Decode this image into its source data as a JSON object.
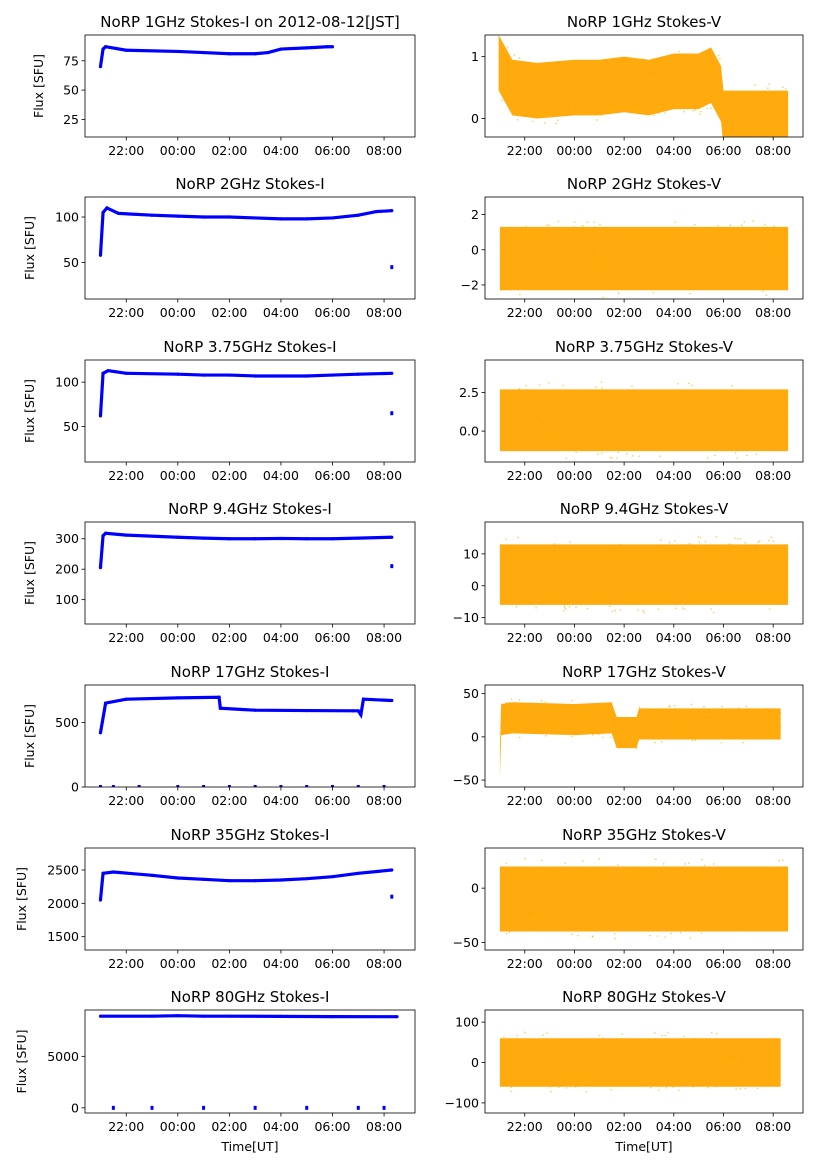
{
  "chart_data": [
    {
      "type": "scatter",
      "title": "NoRP 1GHz Stokes-I on 2012-08-12[JST]",
      "ylabel": "Flux [SFU]",
      "xlabel": "",
      "color": "#0000ff",
      "ylim": [
        10,
        97
      ],
      "yticks": [
        {
          "value": 25,
          "label": "25"
        },
        {
          "value": 50,
          "label": "50"
        },
        {
          "value": 75,
          "label": "75"
        }
      ],
      "xlim": [
        -3.6,
        9.2
      ],
      "x_end": 6.0,
      "series": [
        {
          "values": [
            [
              -3.0,
              70
            ],
            [
              -2.9,
              85
            ],
            [
              -2.8,
              87
            ],
            [
              -2.0,
              84
            ],
            [
              0,
              83
            ],
            [
              1,
              82
            ],
            [
              2,
              81
            ],
            [
              3,
              81
            ],
            [
              3.5,
              82
            ],
            [
              4,
              85
            ],
            [
              5,
              86
            ],
            [
              5.8,
              87
            ],
            [
              6.0,
              87
            ]
          ]
        }
      ],
      "outliers": []
    },
    {
      "type": "scatter",
      "title": "NoRP 1GHz Stokes-V",
      "ylabel": "",
      "xlabel": "",
      "color": "#ffa500",
      "ylim": [
        -0.3,
        1.35
      ],
      "yticks": [
        {
          "value": 0,
          "label": "0"
        },
        {
          "value": 1,
          "label": "1"
        }
      ],
      "xlim": [
        -3.6,
        9.2
      ],
      "series": [
        {
          "values": [
            [
              -3.05,
              0.9
            ],
            [
              -2.5,
              0.5
            ],
            [
              -1.5,
              0.45
            ],
            [
              0,
              0.5
            ],
            [
              1,
              0.5
            ],
            [
              2,
              0.55
            ],
            [
              3,
              0.5
            ],
            [
              4,
              0.6
            ],
            [
              5,
              0.6
            ],
            [
              5.5,
              0.7
            ],
            [
              5.9,
              0.4
            ],
            [
              6.0,
              0
            ],
            [
              8.6,
              0
            ]
          ],
          "spread": 0.45
        }
      ],
      "outliers": []
    },
    {
      "type": "scatter",
      "title": "NoRP 2GHz Stokes-I",
      "ylabel": "Flux [SFU]",
      "xlabel": "",
      "color": "#0000ff",
      "ylim": [
        10,
        122
      ],
      "yticks": [
        {
          "value": 50,
          "label": "50"
        },
        {
          "value": 100,
          "label": "100"
        }
      ],
      "xlim": [
        -3.6,
        9.2
      ],
      "series": [
        {
          "values": [
            [
              -3.0,
              58
            ],
            [
              -2.9,
              105
            ],
            [
              -2.75,
              110
            ],
            [
              -2.3,
              104
            ],
            [
              -1,
              102
            ],
            [
              0,
              101
            ],
            [
              1,
              100
            ],
            [
              2,
              100
            ],
            [
              3,
              99
            ],
            [
              4,
              98
            ],
            [
              5,
              98
            ],
            [
              6,
              99
            ],
            [
              7,
              102
            ],
            [
              7.7,
              106
            ],
            [
              8.3,
              107
            ]
          ]
        }
      ],
      "outliers": [
        [
          8.3,
          45
        ]
      ]
    },
    {
      "type": "scatter",
      "title": "NoRP 2GHz Stokes-V",
      "ylabel": "",
      "xlabel": "",
      "color": "#ffa500",
      "ylim": [
        -2.8,
        3.0
      ],
      "yticks": [
        {
          "value": -2,
          "label": "−2"
        },
        {
          "value": 0,
          "label": "0"
        },
        {
          "value": 2,
          "label": "2"
        }
      ],
      "xlim": [
        -3.6,
        9.2
      ],
      "series": [
        {
          "values": [
            [
              -3.0,
              -0.5
            ],
            [
              8.6,
              -0.5
            ]
          ],
          "spread": 1.8
        }
      ],
      "outliers": []
    },
    {
      "type": "scatter",
      "title": "NoRP 3.75GHz Stokes-I",
      "ylabel": "Flux [SFU]",
      "xlabel": "",
      "color": "#0000ff",
      "ylim": [
        10,
        125
      ],
      "yticks": [
        {
          "value": 50,
          "label": "50"
        },
        {
          "value": 100,
          "label": "100"
        }
      ],
      "xlim": [
        -3.6,
        9.2
      ],
      "series": [
        {
          "values": [
            [
              -3.0,
              62
            ],
            [
              -2.9,
              110
            ],
            [
              -2.7,
              113
            ],
            [
              -2,
              110
            ],
            [
              0,
              109
            ],
            [
              1,
              108
            ],
            [
              2,
              108
            ],
            [
              3,
              107
            ],
            [
              4,
              107
            ],
            [
              5,
              107
            ],
            [
              6,
              108
            ],
            [
              7,
              109
            ],
            [
              8.3,
              110
            ]
          ]
        }
      ],
      "outliers": [
        [
          8.3,
          65
        ]
      ]
    },
    {
      "type": "scatter",
      "title": "NoRP 3.75GHz Stokes-V",
      "ylabel": "",
      "xlabel": "",
      "color": "#ffa500",
      "ylim": [
        -2.0,
        4.6
      ],
      "yticks": [
        {
          "value": 0,
          "label": "0.0"
        },
        {
          "value": 2.5,
          "label": "2.5"
        }
      ],
      "xlim": [
        -3.6,
        9.2
      ],
      "series": [
        {
          "values": [
            [
              -3.0,
              0.7
            ],
            [
              8.6,
              0.7
            ]
          ],
          "spread": 2.0
        }
      ],
      "outliers": []
    },
    {
      "type": "scatter",
      "title": "NoRP 9.4GHz Stokes-I",
      "ylabel": "Flux [SFU]",
      "xlabel": "",
      "color": "#0000ff",
      "ylim": [
        20,
        355
      ],
      "yticks": [
        {
          "value": 100,
          "label": "100"
        },
        {
          "value": 200,
          "label": "200"
        },
        {
          "value": 300,
          "label": "300"
        }
      ],
      "xlim": [
        -3.6,
        9.2
      ],
      "series": [
        {
          "values": [
            [
              -3.0,
              205
            ],
            [
              -2.9,
              310
            ],
            [
              -2.8,
              318
            ],
            [
              -2,
              312
            ],
            [
              0,
              305
            ],
            [
              1,
              302
            ],
            [
              2,
              300
            ],
            [
              3,
              300
            ],
            [
              4,
              301
            ],
            [
              5,
              300
            ],
            [
              6,
              300
            ],
            [
              7,
              302
            ],
            [
              8.3,
              305
            ]
          ]
        }
      ],
      "outliers": [
        [
          8.3,
          210
        ]
      ]
    },
    {
      "type": "scatter",
      "title": "NoRP 9.4GHz Stokes-V",
      "ylabel": "",
      "xlabel": "",
      "color": "#ffa500",
      "ylim": [
        -12,
        20
      ],
      "yticks": [
        {
          "value": -10,
          "label": "−10"
        },
        {
          "value": 0,
          "label": "0"
        },
        {
          "value": 10,
          "label": "10"
        }
      ],
      "xlim": [
        -3.6,
        9.2
      ],
      "series": [
        {
          "values": [
            [
              -3.0,
              3.5
            ],
            [
              8.6,
              3.5
            ]
          ],
          "spread": 9.5
        }
      ],
      "outliers": []
    },
    {
      "type": "scatter",
      "title": "NoRP 17GHz Stokes-I",
      "ylabel": "Flux [SFU]",
      "xlabel": "",
      "color": "#0000ff",
      "ylim": [
        0,
        790
      ],
      "yticks": [
        {
          "value": 0,
          "label": "0"
        },
        {
          "value": 500,
          "label": "500"
        }
      ],
      "xlim": [
        -3.6,
        9.2
      ],
      "series": [
        {
          "values": [
            [
              -3.0,
              420
            ],
            [
              -2.8,
              650
            ],
            [
              -2,
              680
            ],
            [
              0,
              690
            ],
            [
              1.6,
              695
            ],
            [
              1.65,
              610
            ],
            [
              2.5,
              600
            ],
            [
              3,
              595
            ],
            [
              5,
              592
            ],
            [
              6.8,
              590
            ],
            [
              7.0,
              590
            ],
            [
              7.1,
              560
            ],
            [
              7.2,
              680
            ],
            [
              8.3,
              670
            ]
          ]
        }
      ],
      "outliers": [
        [
          -3.0,
          0
        ],
        [
          -2.5,
          0
        ],
        [
          -1.5,
          0
        ],
        [
          0,
          0
        ],
        [
          1,
          0
        ],
        [
          2,
          0
        ],
        [
          3,
          0
        ],
        [
          4,
          0
        ],
        [
          5,
          0
        ],
        [
          6,
          0
        ],
        [
          7,
          0
        ],
        [
          8,
          0
        ]
      ]
    },
    {
      "type": "scatter",
      "title": "NoRP 17GHz Stokes-V",
      "ylabel": "",
      "xlabel": "",
      "color": "#ffa500",
      "ylim": [
        -58,
        60
      ],
      "yticks": [
        {
          "value": -50,
          "label": "−50"
        },
        {
          "value": 0,
          "label": "0"
        },
        {
          "value": 50,
          "label": "50"
        }
      ],
      "xlim": [
        -3.6,
        9.2
      ],
      "series": [
        {
          "values": [
            [
              -3.0,
              -30
            ],
            [
              -2.95,
              20
            ],
            [
              -2.5,
              22
            ],
            [
              0,
              20
            ],
            [
              1.5,
              22
            ],
            [
              1.7,
              5
            ],
            [
              2.5,
              5
            ],
            [
              2.6,
              15
            ],
            [
              4,
              15
            ],
            [
              6,
              15
            ],
            [
              8.3,
              15
            ]
          ],
          "spread": 18
        }
      ],
      "outliers": []
    },
    {
      "type": "scatter",
      "title": "NoRP 35GHz Stokes-I",
      "ylabel": "Flux [SFU]",
      "xlabel": "",
      "color": "#0000ff",
      "ylim": [
        1300,
        2830
      ],
      "yticks": [
        {
          "value": 1500,
          "label": "1500"
        },
        {
          "value": 2000,
          "label": "2000"
        },
        {
          "value": 2500,
          "label": "2500"
        }
      ],
      "xlim": [
        -3.6,
        9.2
      ],
      "series": [
        {
          "values": [
            [
              -3.0,
              2050
            ],
            [
              -2.9,
              2450
            ],
            [
              -2.5,
              2470
            ],
            [
              -1,
              2420
            ],
            [
              0,
              2380
            ],
            [
              1,
              2360
            ],
            [
              2,
              2340
            ],
            [
              3,
              2340
            ],
            [
              4,
              2350
            ],
            [
              5,
              2370
            ],
            [
              6,
              2400
            ],
            [
              7,
              2450
            ],
            [
              8.3,
              2500
            ]
          ]
        }
      ],
      "outliers": [
        [
          8.3,
          2100
        ]
      ]
    },
    {
      "type": "scatter",
      "title": "NoRP 35GHz Stokes-V",
      "ylabel": "",
      "xlabel": "",
      "color": "#ffa500",
      "ylim": [
        -57,
        37
      ],
      "yticks": [
        {
          "value": -50,
          "label": "−50"
        },
        {
          "value": 0,
          "label": "0"
        }
      ],
      "xlim": [
        -3.6,
        9.2
      ],
      "series": [
        {
          "values": [
            [
              -3.0,
              -10
            ],
            [
              8.6,
              -10
            ]
          ],
          "spread": 30
        }
      ],
      "outliers": []
    },
    {
      "type": "scatter",
      "title": "NoRP 80GHz Stokes-I",
      "ylabel": "Flux [SFU]",
      "xlabel": "Time[UT]",
      "color": "#0000ff",
      "ylim": [
        -500,
        9500
      ],
      "yticks": [
        {
          "value": 0,
          "label": "0"
        },
        {
          "value": 5000,
          "label": "5000"
        }
      ],
      "xlim": [
        -3.6,
        9.2
      ],
      "series": [
        {
          "values": [
            [
              -3.0,
              8900
            ],
            [
              -1,
              8900
            ],
            [
              0,
              8950
            ],
            [
              1,
              8900
            ],
            [
              2,
              8900
            ],
            [
              4,
              8880
            ],
            [
              6,
              8860
            ],
            [
              8.5,
              8850
            ]
          ]
        }
      ],
      "outliers": [
        [
          -2.5,
          0
        ],
        [
          -1,
          0
        ],
        [
          1,
          0
        ],
        [
          3,
          0
        ],
        [
          5,
          0
        ],
        [
          7,
          0
        ],
        [
          8,
          0
        ]
      ]
    },
    {
      "type": "scatter",
      "title": "NoRP 80GHz Stokes-V",
      "ylabel": "",
      "xlabel": "Time[UT]",
      "color": "#ffa500",
      "ylim": [
        -125,
        130
      ],
      "yticks": [
        {
          "value": -100,
          "label": "−100"
        },
        {
          "value": 0,
          "label": "0"
        },
        {
          "value": 100,
          "label": "100"
        }
      ],
      "xlim": [
        -3.6,
        9.2
      ],
      "series": [
        {
          "values": [
            [
              -3.0,
              0
            ],
            [
              8.3,
              0
            ]
          ],
          "spread": 60
        }
      ],
      "outliers": []
    }
  ],
  "xticks": [
    {
      "value": -2,
      "label": "22:00"
    },
    {
      "value": 0,
      "label": "00:00"
    },
    {
      "value": 2,
      "label": "02:00"
    },
    {
      "value": 4,
      "label": "04:00"
    },
    {
      "value": 6,
      "label": "06:00"
    },
    {
      "value": 8,
      "label": "08:00"
    }
  ]
}
